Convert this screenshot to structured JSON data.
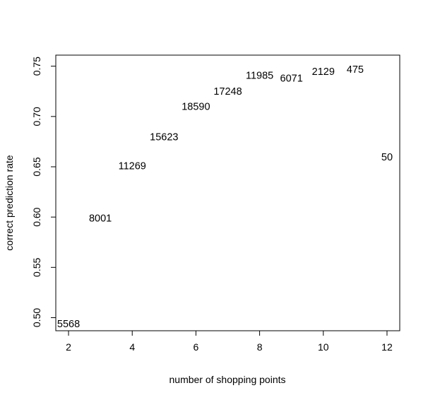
{
  "chart_data": {
    "type": "scatter",
    "title": "",
    "xlabel": "number of shopping points",
    "ylabel": "correct prediction rate",
    "xlim": [
      1.6,
      12.4
    ],
    "ylim": [
      0.487,
      0.761
    ],
    "xticks": [
      2,
      4,
      6,
      8,
      10,
      12
    ],
    "yticks": [
      0.5,
      0.55,
      0.6,
      0.65,
      0.7,
      0.75
    ],
    "xtick_labels": [
      "2",
      "4",
      "6",
      "8",
      "10",
      "12"
    ],
    "ytick_labels": [
      "0.50",
      "0.55",
      "0.60",
      "0.65",
      "0.70",
      "0.75"
    ],
    "grid": false,
    "marker": "text",
    "points": [
      {
        "x": 2,
        "y": 0.494,
        "label": "5568"
      },
      {
        "x": 3,
        "y": 0.599,
        "label": "8001"
      },
      {
        "x": 4,
        "y": 0.651,
        "label": "11269"
      },
      {
        "x": 5,
        "y": 0.68,
        "label": "15623"
      },
      {
        "x": 6,
        "y": 0.71,
        "label": "18590"
      },
      {
        "x": 7,
        "y": 0.725,
        "label": "17248"
      },
      {
        "x": 8,
        "y": 0.741,
        "label": "11985"
      },
      {
        "x": 9,
        "y": 0.738,
        "label": "6071"
      },
      {
        "x": 10,
        "y": 0.745,
        "label": "2129"
      },
      {
        "x": 11,
        "y": 0.747,
        "label": "475"
      },
      {
        "x": 12,
        "y": 0.66,
        "label": "50"
      }
    ]
  }
}
